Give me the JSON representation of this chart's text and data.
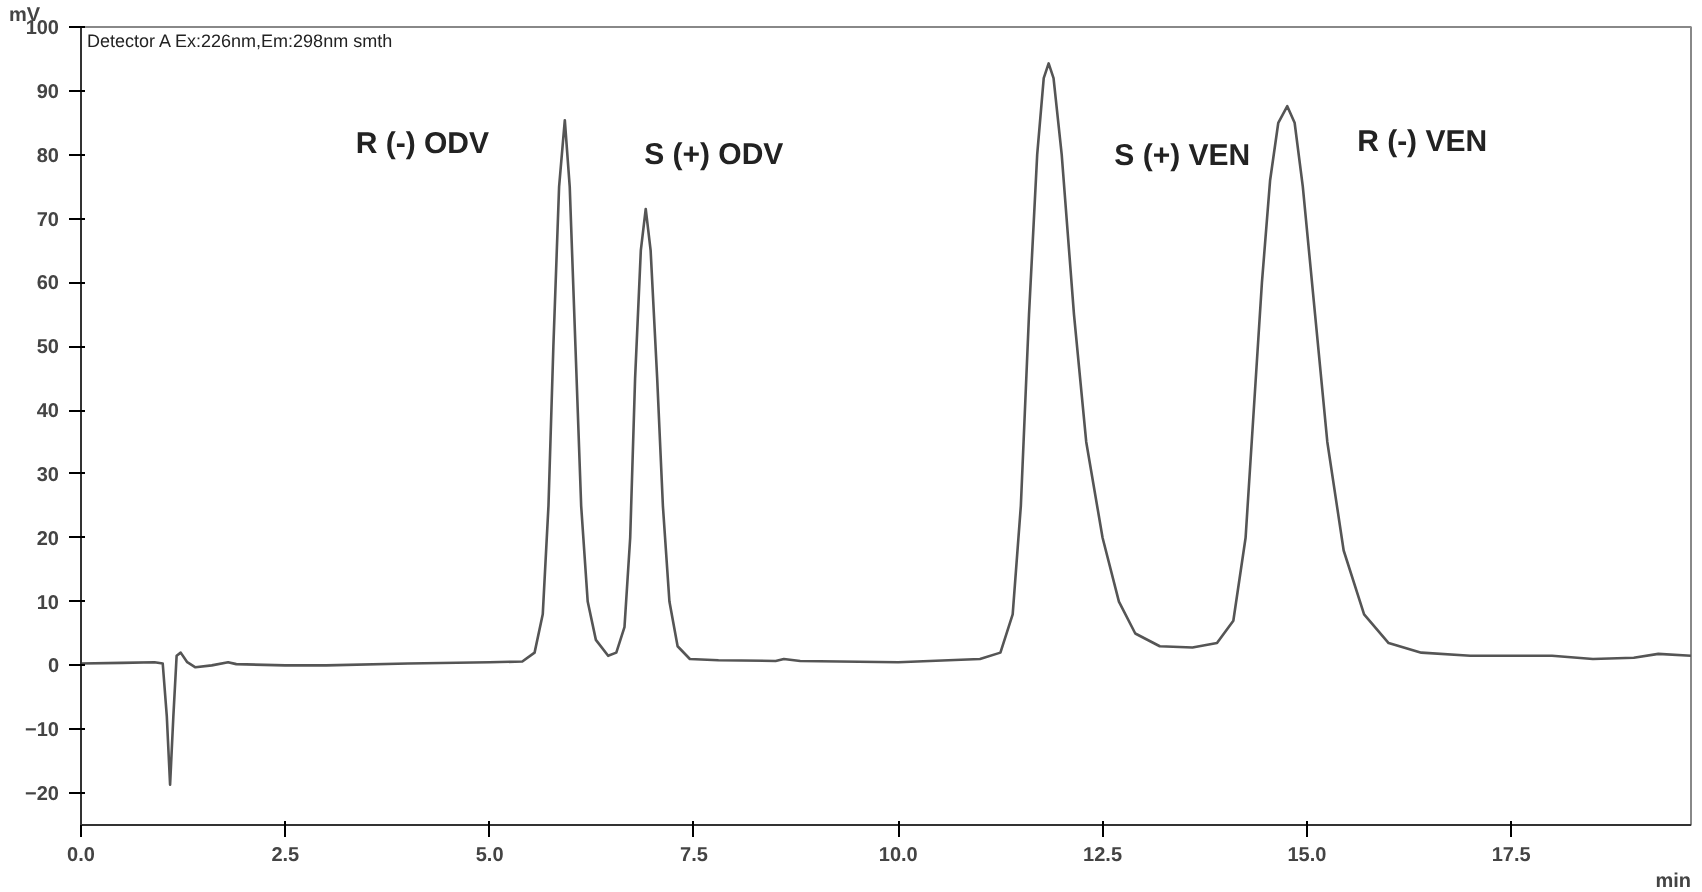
{
  "chart_data": {
    "type": "line",
    "xlabel": "min",
    "ylabel": "mV",
    "x": [
      0.0,
      0.5,
      0.9,
      1.0,
      1.05,
      1.09,
      1.13,
      1.17,
      1.22,
      1.3,
      1.4,
      1.6,
      1.8,
      1.9,
      2.5,
      3.0,
      4.0,
      5.0,
      5.4,
      5.55,
      5.65,
      5.72,
      5.78,
      5.85,
      5.92,
      5.98,
      6.05,
      6.12,
      6.2,
      6.3,
      6.45,
      6.55,
      6.65,
      6.72,
      6.78,
      6.85,
      6.91,
      6.97,
      7.05,
      7.12,
      7.2,
      7.3,
      7.45,
      7.8,
      8.5,
      8.6,
      8.8,
      10.0,
      11.0,
      11.25,
      11.4,
      11.5,
      11.6,
      11.7,
      11.78,
      11.84,
      11.9,
      12.0,
      12.15,
      12.3,
      12.5,
      12.7,
      12.9,
      13.2,
      13.6,
      13.9,
      14.1,
      14.25,
      14.35,
      14.45,
      14.55,
      14.65,
      14.76,
      14.85,
      14.95,
      15.1,
      15.25,
      15.45,
      15.7,
      16.0,
      16.4,
      17.0,
      18.0,
      18.5,
      19.0,
      19.3,
      19.7
    ],
    "series": [
      {
        "color": "#555555",
        "values": [
          0.3,
          0.4,
          0.5,
          0.3,
          -8,
          -18.7,
          -8,
          1.5,
          2.0,
          0.5,
          -0.3,
          0,
          0.5,
          0.2,
          0,
          0,
          0.3,
          0.5,
          0.6,
          2,
          8,
          25,
          50,
          75,
          85.4,
          75,
          50,
          25,
          10,
          4,
          1.5,
          2,
          6,
          20,
          45,
          65,
          71.5,
          65,
          45,
          25,
          10,
          3,
          1,
          0.8,
          0.7,
          1.0,
          0.7,
          0.5,
          1,
          2,
          8,
          25,
          55,
          80,
          92,
          94.3,
          92,
          80,
          55,
          35,
          20,
          10,
          5,
          3,
          2.8,
          3.5,
          7,
          20,
          40,
          60,
          76,
          85,
          87.6,
          85,
          75,
          55,
          35,
          18,
          8,
          3.5,
          2,
          1.5,
          1.5,
          1.0,
          1.2,
          1.8,
          1.5
        ]
      }
    ],
    "xlim": [
      0,
      19.7
    ],
    "ylim": [
      -25,
      100
    ],
    "xticks": [
      {
        "value": 0,
        "label": "0.0"
      },
      2.5,
      {
        "value": 5,
        "label": "5.0"
      },
      7.5,
      {
        "value": 10,
        "label": "10.0"
      },
      12.5,
      {
        "value": 15,
        "label": "15.0"
      },
      17.5
    ],
    "yticks": [
      -20,
      -10,
      0,
      10,
      20,
      30,
      40,
      50,
      60,
      70,
      80,
      90,
      100
    ],
    "grid": false,
    "marker": "none",
    "line_style": "solid",
    "annotations": [
      "Detector A Ex:226nm,Em:298nm smth",
      "R (-) ODV",
      "S (+) ODV",
      "S (+) VEN",
      "R (-) VEN"
    ]
  }
}
